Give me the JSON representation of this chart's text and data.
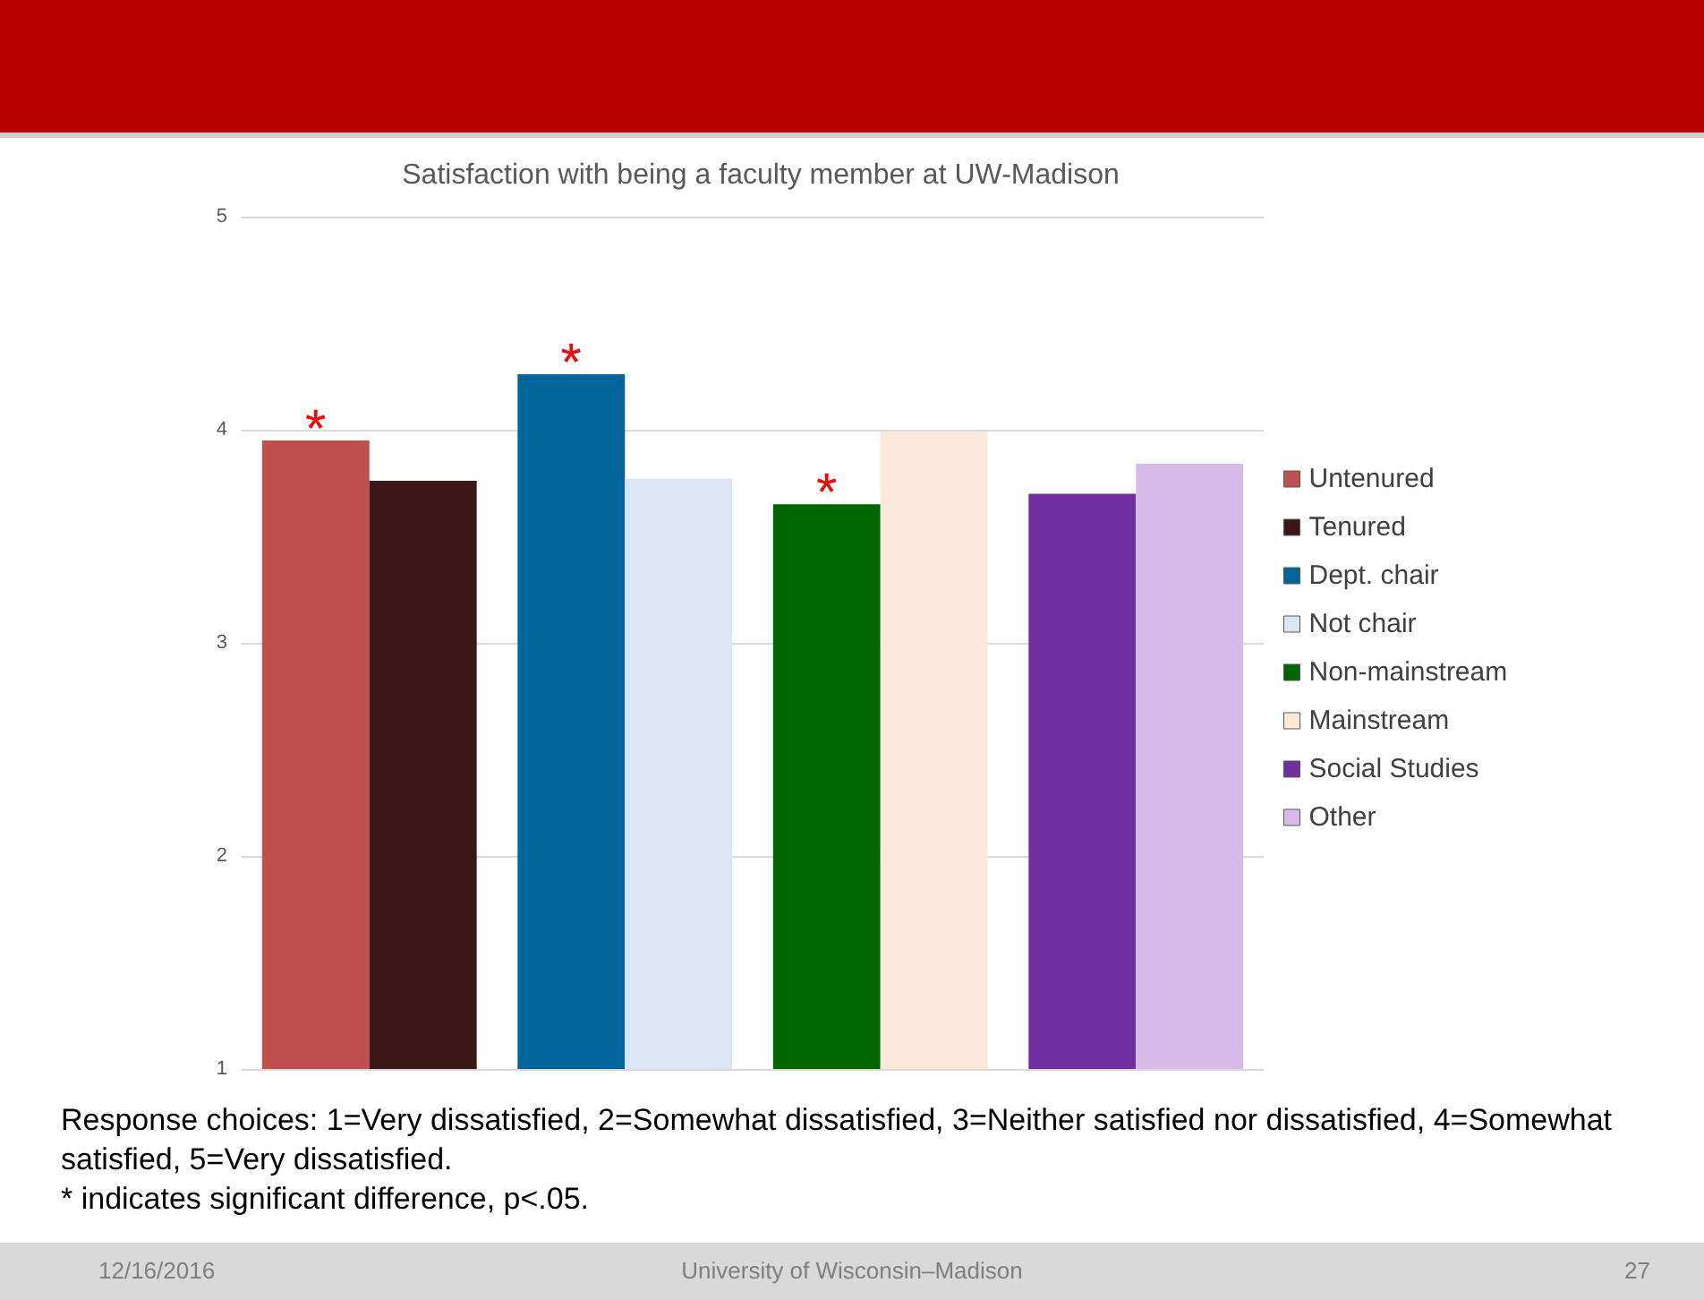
{
  "chart_data": {
    "type": "bar",
    "title": "Satisfaction with being a faculty member at UW-Madison",
    "categories": [
      null,
      null,
      null,
      null
    ],
    "series": [
      {
        "name": "Untenured",
        "color": "#c0504d",
        "values": [
          3.95,
          null,
          null,
          null
        ],
        "value_labels": [
          "*",
          null,
          null,
          null
        ]
      },
      {
        "name": "Tenured",
        "color": "#3a1818",
        "values": [
          3.76,
          null,
          null,
          null
        ]
      },
      {
        "name": "Dept. chair",
        "color": "#00659a",
        "values": [
          null,
          4.26,
          null,
          null
        ],
        "value_labels": [
          null,
          "*",
          null,
          null
        ]
      },
      {
        "name": "Not chair",
        "color": "#dce6f2",
        "values": [
          null,
          3.77,
          null,
          null
        ]
      },
      {
        "name": "Non-mainstream",
        "color": "#006600",
        "values": [
          null,
          null,
          3.65,
          null
        ],
        "value_labels": [
          null,
          null,
          "*",
          null
        ]
      },
      {
        "name": "Mainstream",
        "color": "#fde9d9",
        "values": [
          null,
          null,
          3.99,
          null
        ]
      },
      {
        "name": "Social Studies",
        "color": "#7030a0",
        "values": [
          null,
          null,
          null,
          3.7
        ]
      },
      {
        "name": "Other",
        "color": "#d6bbe8",
        "values": [
          null,
          null,
          null,
          3.84
        ]
      }
    ],
    "ylim": [
      1,
      5
    ],
    "yticks": [
      1,
      2,
      3,
      4,
      5
    ],
    "grid": "y",
    "legend": "right",
    "annotations": [
      "Response choices:  1=Very dissatisfied, 2=Somewhat dissatisfied, 3=Neither satisfied nor dissatisfied, 4=Somewhat satisfied, 5=Very dissatisfied.",
      "* indicates significant difference, p<.05.",
      "12/16/2016",
      "University of Wisconsin–Madison",
      "27"
    ]
  }
}
